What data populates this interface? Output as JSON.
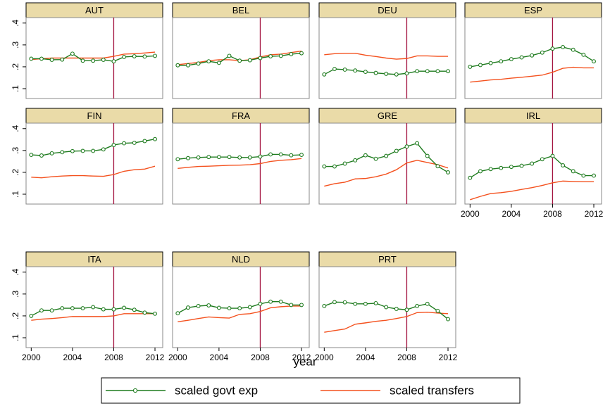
{
  "chart_data": {
    "type": "line",
    "x": [
      2000,
      2001,
      2002,
      2003,
      2004,
      2005,
      2006,
      2007,
      2008,
      2009,
      2010,
      2011,
      2012
    ],
    "xlabel": "year",
    "xlim": [
      1999.5,
      2012.75
    ],
    "xticks": [
      2000,
      2004,
      2008,
      2012
    ],
    "ylim": [
      0.055,
      0.425
    ],
    "yticks": [
      {
        "value": 0.1,
        "label": ".1"
      },
      {
        "value": 0.2,
        "label": ".2"
      },
      {
        "value": 0.3,
        "label": ".3"
      },
      {
        "value": 0.4,
        "label": ".4"
      }
    ],
    "vline": 2008,
    "vline_color": "#a3133f",
    "series": [
      {
        "name": "scaled govt exp",
        "color": "#1e7b1e",
        "marker": "circle"
      },
      {
        "name": "scaled transfers",
        "color": "#f4511e"
      }
    ],
    "panels": [
      {
        "title": "AUT",
        "series": [
          {
            "values": [
              0.237,
              0.237,
              0.232,
              0.233,
              0.26,
              0.228,
              0.228,
              0.232,
              0.225,
              0.245,
              0.248,
              0.247,
              0.25
            ]
          },
          {
            "values": [
              0.233,
              0.237,
              0.24,
              0.24,
              0.24,
              0.24,
              0.24,
              0.24,
              0.248,
              0.258,
              0.26,
              0.263,
              0.267
            ]
          }
        ]
      },
      {
        "title": "BEL",
        "series": [
          {
            "values": [
              0.207,
              0.207,
              0.215,
              0.225,
              0.218,
              0.25,
              0.228,
              0.23,
              0.24,
              0.248,
              0.25,
              0.258,
              0.262
            ]
          },
          {
            "values": [
              0.21,
              0.215,
              0.22,
              0.228,
              0.232,
              0.232,
              0.228,
              0.232,
              0.245,
              0.255,
              0.258,
              0.265,
              0.272
            ]
          }
        ]
      },
      {
        "title": "DEU",
        "series": [
          {
            "values": [
              0.165,
              0.19,
              0.187,
              0.183,
              0.177,
              0.172,
              0.168,
              0.165,
              0.17,
              0.18,
              0.18,
              0.18,
              0.18
            ]
          },
          {
            "values": [
              0.255,
              0.26,
              0.262,
              0.262,
              0.253,
              0.247,
              0.24,
              0.235,
              0.238,
              0.25,
              0.25,
              0.248,
              0.248
            ]
          }
        ]
      },
      {
        "title": "ESP",
        "series": [
          {
            "values": [
              0.2,
              0.208,
              0.217,
              0.225,
              0.235,
              0.243,
              0.252,
              0.265,
              0.283,
              0.29,
              0.278,
              0.255,
              0.225
            ]
          },
          {
            "values": [
              0.13,
              0.135,
              0.14,
              0.143,
              0.148,
              0.152,
              0.157,
              0.162,
              0.175,
              0.193,
              0.198,
              0.195,
              0.195
            ]
          }
        ]
      },
      {
        "title": "FIN",
        "series": [
          {
            "values": [
              0.28,
              0.277,
              0.287,
              0.292,
              0.297,
              0.298,
              0.298,
              0.305,
              0.325,
              0.333,
              0.335,
              0.343,
              0.352
            ]
          },
          {
            "values": [
              0.178,
              0.175,
              0.18,
              0.183,
              0.185,
              0.185,
              0.183,
              0.182,
              0.19,
              0.205,
              0.212,
              0.215,
              0.228
            ]
          }
        ]
      },
      {
        "title": "FRA",
        "series": [
          {
            "values": [
              0.26,
              0.265,
              0.268,
              0.27,
              0.27,
              0.27,
              0.268,
              0.268,
              0.272,
              0.282,
              0.282,
              0.278,
              0.28
            ]
          },
          {
            "values": [
              0.218,
              0.223,
              0.227,
              0.228,
              0.23,
              0.232,
              0.233,
              0.235,
              0.24,
              0.25,
              0.255,
              0.258,
              0.263
            ]
          }
        ]
      },
      {
        "title": "GRE",
        "series": [
          {
            "values": [
              0.227,
              0.227,
              0.24,
              0.255,
              0.278,
              0.262,
              0.275,
              0.298,
              0.318,
              0.333,
              0.275,
              0.228,
              0.2
            ]
          },
          {
            "values": [
              0.137,
              0.148,
              0.155,
              0.17,
              0.172,
              0.18,
              0.192,
              0.212,
              0.243,
              0.255,
              0.245,
              0.235,
              0.22
            ]
          }
        ]
      },
      {
        "title": "IRL",
        "series": [
          {
            "values": [
              0.175,
              0.205,
              0.215,
              0.22,
              0.225,
              0.23,
              0.24,
              0.26,
              0.275,
              0.232,
              0.205,
              0.185,
              0.185
            ]
          },
          {
            "values": [
              0.075,
              0.09,
              0.103,
              0.107,
              0.113,
              0.122,
              0.13,
              0.14,
              0.152,
              0.16,
              0.158,
              0.157,
              0.157
            ]
          }
        ]
      },
      {
        "title": "ITA",
        "series": [
          {
            "values": [
              0.2,
              0.225,
              0.225,
              0.235,
              0.235,
              0.235,
              0.24,
              0.23,
              0.23,
              0.237,
              0.228,
              0.215,
              0.21
            ]
          },
          {
            "values": [
              0.18,
              0.185,
              0.188,
              0.192,
              0.197,
              0.197,
              0.197,
              0.197,
              0.2,
              0.21,
              0.21,
              0.21,
              0.21
            ]
          }
        ]
      },
      {
        "title": "NLD",
        "series": [
          {
            "values": [
              0.212,
              0.238,
              0.245,
              0.248,
              0.237,
              0.235,
              0.235,
              0.24,
              0.255,
              0.265,
              0.265,
              0.25,
              0.25
            ]
          },
          {
            "values": [
              0.173,
              0.18,
              0.188,
              0.195,
              0.192,
              0.19,
              0.207,
              0.21,
              0.22,
              0.237,
              0.242,
              0.245,
              0.245
            ]
          }
        ]
      },
      {
        "title": "PRT",
        "series": [
          {
            "values": [
              0.245,
              0.263,
              0.262,
              0.255,
              0.255,
              0.258,
              0.24,
              0.232,
              0.228,
              0.245,
              0.255,
              0.223,
              0.185
            ]
          },
          {
            "values": [
              0.125,
              0.133,
              0.14,
              0.162,
              0.168,
              0.175,
              0.18,
              0.188,
              0.197,
              0.215,
              0.217,
              0.213,
              0.21
            ]
          }
        ]
      }
    ]
  }
}
